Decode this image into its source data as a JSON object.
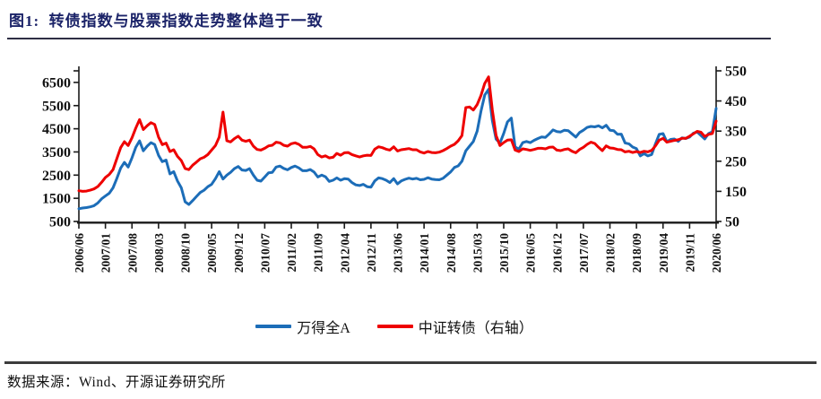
{
  "title": "图1:  转债指数与股票指数走势整体趋于一致",
  "source": "数据来源：Wind、开源证券研究所",
  "colors": {
    "title_navy": "#1b2368",
    "blue_line": "#1C6DB8",
    "red_line": "#EE0000",
    "axis": "#1a1a1a",
    "rule": "#3c3c3c"
  },
  "chart_data": {
    "type": "line",
    "x_start": "2006/06",
    "x_end": "2020/06",
    "x_frequency": "monthly",
    "x_tick_labels": [
      "2006/06",
      "2007/01",
      "2007/08",
      "2008/03",
      "2008/10",
      "2009/05",
      "2009/12",
      "2010/07",
      "2011/02",
      "2011/09",
      "2012/04",
      "2012/11",
      "2013/06",
      "2014/01",
      "2014/08",
      "2015/03",
      "2015/10",
      "2016/05",
      "2016/12",
      "2017/07",
      "2018/02",
      "2018/09",
      "2019/04",
      "2019/11",
      "2020/06"
    ],
    "x_tick_step_months": 7,
    "left_axis": {
      "min": 500,
      "max": 7000,
      "tick_interval": 1000,
      "tick_labels": [
        6500,
        5500,
        4500,
        3500,
        2500,
        1500,
        500
      ]
    },
    "right_axis": {
      "min": 50,
      "max": 550,
      "tick_interval": 100,
      "tick_labels": [
        550,
        450,
        350,
        250,
        150,
        50
      ]
    },
    "grid": false,
    "legend_position": "bottom",
    "series": [
      {
        "name": "万得全A",
        "axis": "left",
        "color": "#1C6DB8",
        "values": [
          1050,
          1080,
          1100,
          1130,
          1180,
          1300,
          1480,
          1600,
          1720,
          1950,
          2350,
          2800,
          3050,
          2850,
          3250,
          3700,
          3980,
          3550,
          3750,
          3900,
          3820,
          3350,
          3080,
          3150,
          2550,
          2650,
          2250,
          1950,
          1350,
          1230,
          1400,
          1580,
          1750,
          1850,
          2000,
          2100,
          2350,
          2650,
          2330,
          2500,
          2620,
          2780,
          2870,
          2720,
          2700,
          2780,
          2500,
          2280,
          2240,
          2420,
          2600,
          2620,
          2850,
          2890,
          2790,
          2730,
          2830,
          2890,
          2810,
          2690,
          2690,
          2740,
          2630,
          2420,
          2500,
          2430,
          2230,
          2280,
          2380,
          2280,
          2350,
          2330,
          2180,
          2080,
          2050,
          2100,
          2000,
          1980,
          2250,
          2380,
          2350,
          2280,
          2180,
          2350,
          2120,
          2250,
          2320,
          2370,
          2330,
          2360,
          2300,
          2320,
          2390,
          2330,
          2310,
          2300,
          2360,
          2500,
          2640,
          2830,
          2900,
          3100,
          3550,
          3750,
          3950,
          4400,
          5250,
          5950,
          6200,
          4850,
          4050,
          3880,
          4300,
          4800,
          4960,
          3720,
          3620,
          3900,
          3950,
          3900,
          4000,
          4080,
          4150,
          4130,
          4280,
          4450,
          4380,
          4360,
          4440,
          4420,
          4280,
          4140,
          4340,
          4440,
          4560,
          4600,
          4580,
          4630,
          4540,
          4650,
          4440,
          4420,
          4260,
          4270,
          3890,
          3850,
          3710,
          3640,
          3330,
          3430,
          3330,
          3390,
          3850,
          4260,
          4290,
          3940,
          4040,
          4060,
          3960,
          4110,
          4080,
          4140,
          4310,
          4360,
          4210,
          4060,
          4290,
          4370,
          5380
        ]
      },
      {
        "name": "中证转债（右轴）",
        "axis": "right",
        "color": "#EE0000",
        "values": [
          152,
          150,
          151,
          154,
          158,
          166,
          180,
          196,
          206,
          222,
          258,
          295,
          315,
          302,
          328,
          360,
          388,
          355,
          368,
          378,
          372,
          330,
          305,
          310,
          282,
          288,
          266,
          252,
          226,
          222,
          237,
          247,
          258,
          263,
          272,
          287,
          302,
          330,
          413,
          318,
          314,
          325,
          333,
          320,
          316,
          320,
          300,
          289,
          287,
          293,
          301,
          303,
          313,
          311,
          303,
          300,
          308,
          311,
          306,
          296,
          296,
          299,
          291,
          272,
          264,
          268,
          261,
          263,
          276,
          270,
          278,
          279,
          272,
          268,
          264,
          268,
          270,
          269,
          290,
          298,
          295,
          290,
          287,
          298,
          284,
          288,
          290,
          292,
          288,
          288,
          281,
          277,
          282,
          279,
          278,
          280,
          285,
          292,
          300,
          306,
          318,
          335,
          428,
          430,
          420,
          438,
          468,
          508,
          530,
          420,
          335,
          302,
          312,
          320,
          321,
          287,
          282,
          291,
          289,
          286,
          289,
          293,
          293,
          291,
          296,
          297,
          287,
          285,
          289,
          291,
          283,
          278,
          289,
          296,
          306,
          313,
          309,
          296,
          285,
          301,
          294,
          293,
          289,
          288,
          281,
          283,
          279,
          282,
          279,
          283,
          281,
          286,
          301,
          320,
          326,
          313,
          316,
          319,
          321,
          326,
          326,
          333,
          341,
          349,
          346,
          332,
          339,
          342,
          383
        ]
      }
    ]
  }
}
